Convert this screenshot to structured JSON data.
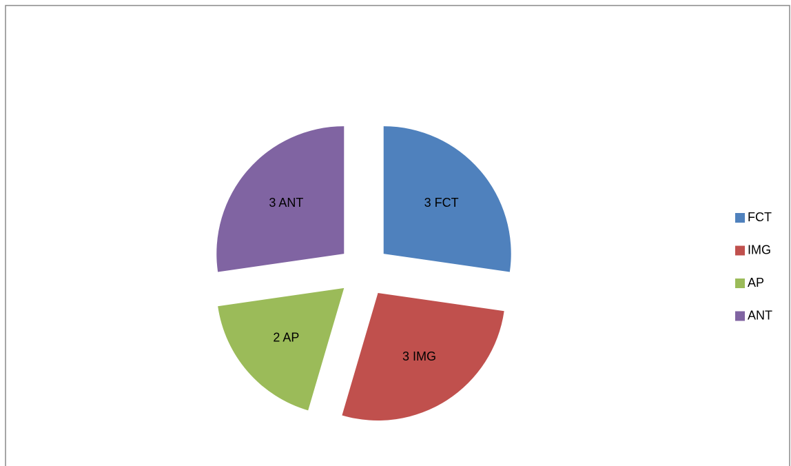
{
  "chart_data": {
    "type": "pie",
    "categories": [
      "FCT",
      "IMG",
      "AP",
      "ANT"
    ],
    "values": [
      3,
      3,
      2,
      3
    ],
    "value_labels": [
      "3 FCT",
      "3 IMG",
      "2 AP",
      "3 ANT"
    ],
    "colors": [
      "#4f81bd",
      "#c0504d",
      "#9bbb59",
      "#8064a2"
    ],
    "legend": "right"
  }
}
